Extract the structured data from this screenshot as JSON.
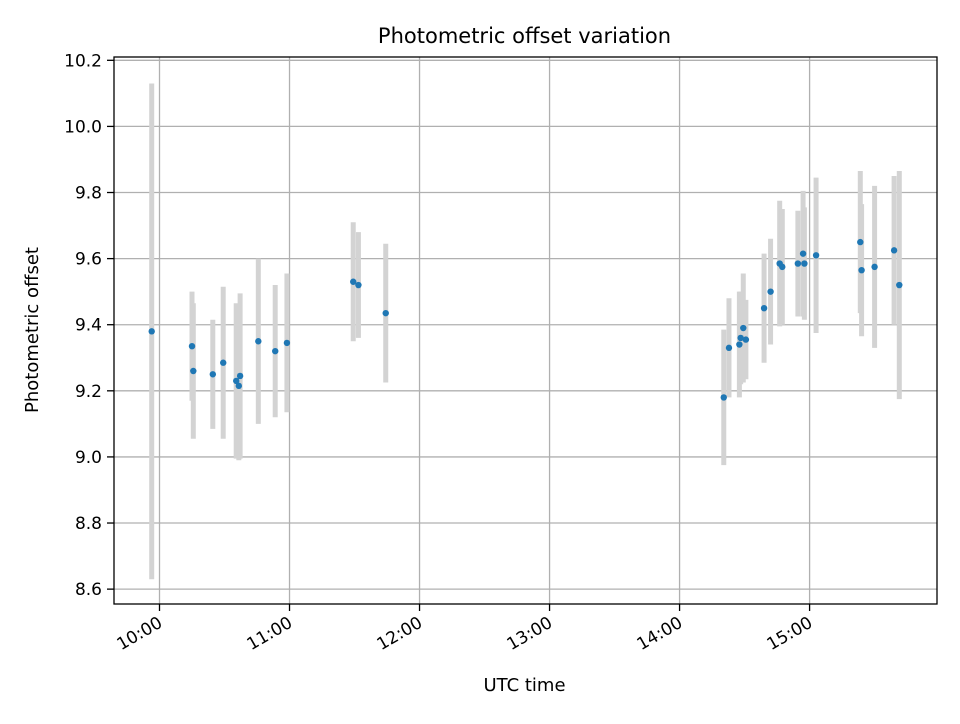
{
  "chart_data": {
    "type": "scatter",
    "title": "Photometric offset variation",
    "xlabel": "UTC time",
    "ylabel": "Photometric offset",
    "x_unit": "hours (UTC time of day)",
    "xlim": [
      9.65,
      15.98
    ],
    "ylim": [
      8.555,
      10.21
    ],
    "x_ticks": [
      10,
      11,
      12,
      13,
      14,
      15
    ],
    "x_tick_labels": [
      "10:00",
      "11:00",
      "12:00",
      "13:00",
      "14:00",
      "15:00"
    ],
    "y_ticks": [
      8.6,
      8.8,
      9.0,
      9.2,
      9.4,
      9.6,
      9.8,
      10.0,
      10.2
    ],
    "y_tick_labels": [
      "8.6",
      "8.8",
      "9.0",
      "9.2",
      "9.4",
      "9.6",
      "9.8",
      "10.0",
      "10.2"
    ],
    "grid": true,
    "marker_color": "#1f77b4",
    "errorbar_color": "#d3d3d3",
    "points": [
      {
        "x": 9.94,
        "y": 9.38,
        "err": 0.75
      },
      {
        "x": 10.25,
        "y": 9.335,
        "err": 0.165
      },
      {
        "x": 10.26,
        "y": 9.26,
        "err": 0.205
      },
      {
        "x": 10.41,
        "y": 9.25,
        "err": 0.165
      },
      {
        "x": 10.49,
        "y": 9.285,
        "err": 0.23
      },
      {
        "x": 10.59,
        "y": 9.23,
        "err": 0.235
      },
      {
        "x": 10.61,
        "y": 9.215,
        "err": 0.225
      },
      {
        "x": 10.62,
        "y": 9.245,
        "err": 0.25
      },
      {
        "x": 10.76,
        "y": 9.35,
        "err": 0.25
      },
      {
        "x": 10.89,
        "y": 9.32,
        "err": 0.2
      },
      {
        "x": 10.98,
        "y": 9.345,
        "err": 0.21
      },
      {
        "x": 11.49,
        "y": 9.53,
        "err": 0.18
      },
      {
        "x": 11.53,
        "y": 9.52,
        "err": 0.16
      },
      {
        "x": 11.74,
        "y": 9.435,
        "err": 0.21
      },
      {
        "x": 14.34,
        "y": 9.18,
        "err": 0.205
      },
      {
        "x": 14.38,
        "y": 9.33,
        "err": 0.15
      },
      {
        "x": 14.46,
        "y": 9.34,
        "err": 0.16
      },
      {
        "x": 14.47,
        "y": 9.36,
        "err": 0.14
      },
      {
        "x": 14.49,
        "y": 9.39,
        "err": 0.165
      },
      {
        "x": 14.51,
        "y": 9.355,
        "err": 0.12
      },
      {
        "x": 14.65,
        "y": 9.45,
        "err": 0.165
      },
      {
        "x": 14.7,
        "y": 9.5,
        "err": 0.16
      },
      {
        "x": 14.77,
        "y": 9.585,
        "err": 0.19
      },
      {
        "x": 14.79,
        "y": 9.575,
        "err": 0.175
      },
      {
        "x": 14.91,
        "y": 9.585,
        "err": 0.16
      },
      {
        "x": 14.95,
        "y": 9.615,
        "err": 0.19
      },
      {
        "x": 14.96,
        "y": 9.585,
        "err": 0.17
      },
      {
        "x": 15.05,
        "y": 9.61,
        "err": 0.235
      },
      {
        "x": 15.39,
        "y": 9.65,
        "err": 0.215
      },
      {
        "x": 15.4,
        "y": 9.565,
        "err": 0.2
      },
      {
        "x": 15.5,
        "y": 9.575,
        "err": 0.245
      },
      {
        "x": 15.65,
        "y": 9.625,
        "err": 0.225
      },
      {
        "x": 15.69,
        "y": 9.52,
        "err": 0.345
      }
    ]
  }
}
